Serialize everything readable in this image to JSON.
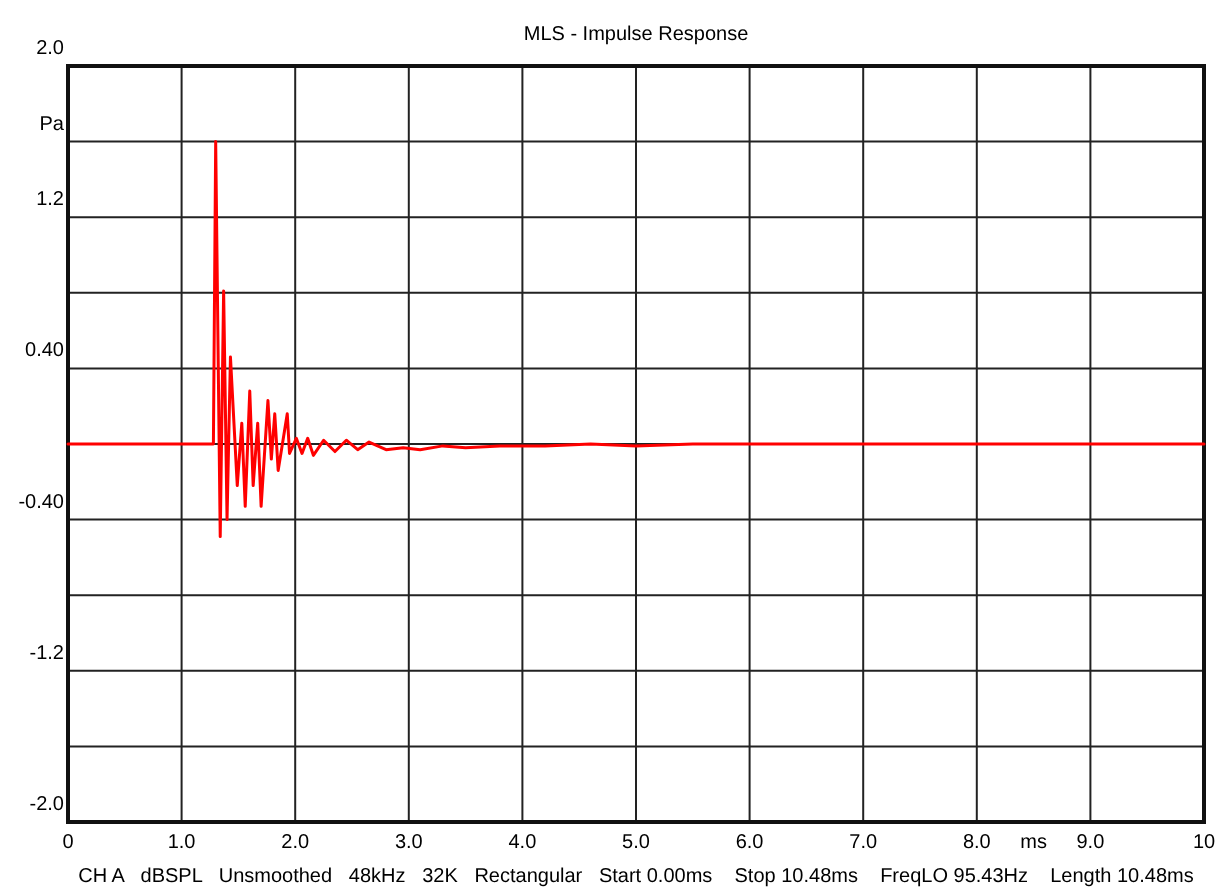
{
  "chart_data": {
    "type": "line",
    "title": "MLS - Impulse Response",
    "xlabel": "ms",
    "x": [
      0,
      0.5,
      1.0,
      1.25,
      1.28,
      1.3,
      1.34,
      1.37,
      1.4,
      1.43,
      1.49,
      1.53,
      1.56,
      1.6,
      1.63,
      1.67,
      1.7,
      1.76,
      1.79,
      1.82,
      1.85,
      1.93,
      1.95,
      2.01,
      2.06,
      2.11,
      2.16,
      2.25,
      2.35,
      2.45,
      2.55,
      2.65,
      2.8,
      2.95,
      3.1,
      3.3,
      3.5,
      3.8,
      4.2,
      4.6,
      5.0,
      5.5,
      6.0,
      7.0,
      8.0,
      9.0,
      10.0
    ],
    "series": [
      {
        "color": "#ff0000",
        "values": [
          0,
          0,
          0,
          0,
          0,
          1.6,
          -0.49,
          0.81,
          -0.4,
          0.46,
          -0.22,
          0.11,
          -0.33,
          0.28,
          -0.22,
          0.11,
          -0.33,
          0.23,
          -0.08,
          0.16,
          -0.14,
          0.16,
          -0.05,
          0.03,
          -0.05,
          0.03,
          -0.06,
          0.02,
          -0.04,
          0.02,
          -0.03,
          0.01,
          -0.03,
          -0.02,
          -0.03,
          -0.01,
          -0.02,
          -0.01,
          -0.01,
          0,
          -0.01,
          0,
          0,
          0,
          0,
          0,
          0
        ]
      }
    ],
    "xlim": [
      0,
      10
    ],
    "ylim": [
      -2.0,
      2.0
    ],
    "xticks": [
      0,
      {
        "value": 1,
        "label": "1.0"
      },
      {
        "value": 2,
        "label": "2.0"
      },
      {
        "value": 3,
        "label": "3.0"
      },
      {
        "value": 4,
        "label": "4.0"
      },
      {
        "value": 5,
        "label": "5.0"
      },
      {
        "value": 6,
        "label": "6.0"
      },
      {
        "value": 7,
        "label": "7.0"
      },
      {
        "value": 8,
        "label": "8.0"
      },
      {
        "value": 9,
        "label": "9.0"
      },
      10
    ],
    "yticks": [
      {
        "value": 2,
        "label": "2.0"
      },
      {
        "value": 1.6,
        "label": "Pa"
      },
      1.2,
      {
        "value": 0.8,
        "label": null
      },
      {
        "value": 0.4,
        "label": "0.40"
      },
      {
        "value": 0,
        "label": null
      },
      {
        "value": -0.4,
        "label": "-0.40"
      },
      {
        "value": -0.8,
        "label": null
      },
      -1.2,
      {
        "value": -1.6,
        "label": null
      },
      {
        "value": -2,
        "label": "-2.0"
      }
    ],
    "grid": true,
    "annotations": [
      "CH A   dBSPL   Unsmoothed   48kHz   32K   Rectangular   Start 0.00ms    Stop 10.48ms    FreqLO 95.43Hz    Length 10.48ms"
    ]
  }
}
